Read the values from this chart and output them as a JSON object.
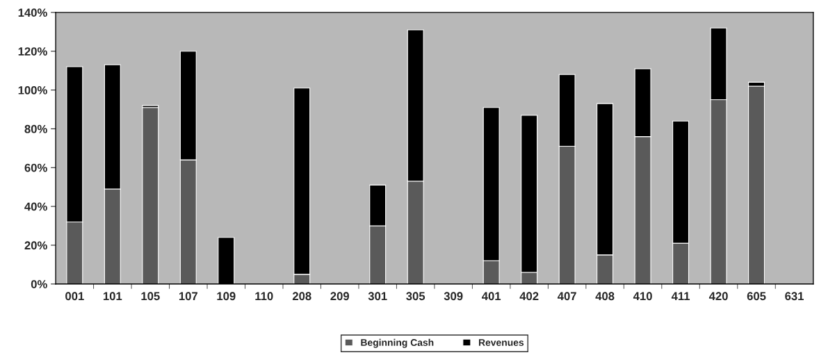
{
  "chart_data": {
    "type": "bar",
    "stacked": true,
    "categories": [
      "001",
      "101",
      "105",
      "107",
      "109",
      "110",
      "208",
      "209",
      "301",
      "305",
      "309",
      "401",
      "402",
      "407",
      "408",
      "410",
      "411",
      "420",
      "605",
      "631"
    ],
    "series": [
      {
        "name": "Beginning Cash",
        "color": "#5a5a5a",
        "values": [
          32,
          49,
          91,
          64,
          0,
          0,
          5,
          0,
          30,
          53,
          0,
          12,
          6,
          71,
          15,
          76,
          21,
          95,
          102,
          0
        ]
      },
      {
        "name": "Revenues",
        "color": "#000000",
        "values": [
          80,
          64,
          1,
          56,
          24,
          0,
          96,
          0,
          21,
          78,
          0,
          79,
          81,
          37,
          78,
          35,
          63,
          37,
          2,
          0
        ]
      }
    ],
    "ylim": [
      0,
      140
    ],
    "yticks": [
      {
        "value": 0,
        "label": "0%"
      },
      {
        "value": 20,
        "label": "20%"
      },
      {
        "value": 40,
        "label": "40%"
      },
      {
        "value": 60,
        "label": "60%"
      },
      {
        "value": 80,
        "label": "80%"
      },
      {
        "value": 100,
        "label": "100%"
      },
      {
        "value": 120,
        "label": "120%"
      },
      {
        "value": 140,
        "label": "140%"
      }
    ],
    "grid": false,
    "legend": "bottom"
  }
}
